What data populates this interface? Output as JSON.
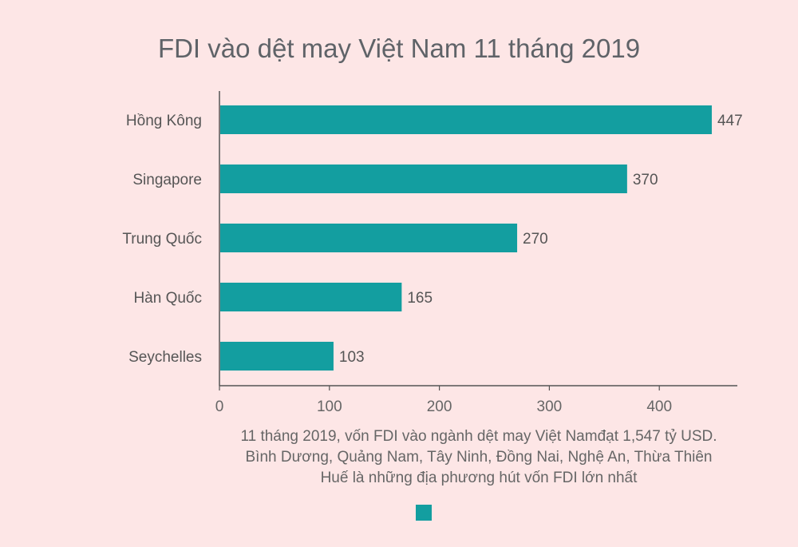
{
  "chart_data": {
    "type": "bar",
    "orientation": "horizontal",
    "title": "FDI vào dệt may Việt Nam 11 tháng 2019",
    "categories": [
      "Hồng Kông",
      "Singapore",
      "Trung Quốc",
      "Hàn Quốc",
      "Seychelles"
    ],
    "series": [
      {
        "values": [
          447,
          370,
          270,
          165,
          103
        ]
      }
    ],
    "xlim": [
      0,
      470
    ],
    "xticks": [
      0,
      100,
      200,
      300,
      400
    ],
    "grid": false,
    "bar_color": "#139ea0",
    "legend_position": "bottom",
    "caption": [
      "11 tháng 2019, vốn FDI vào ngành dệt may Việt Namđạt 1,547 tỷ USD.",
      "Bình Dương, Quảng Nam, Tây Ninh, Đồng Nai, Nghệ An, Thừa Thiên",
      "Huế là những địa phương hút vốn FDI lớn nhất"
    ]
  }
}
